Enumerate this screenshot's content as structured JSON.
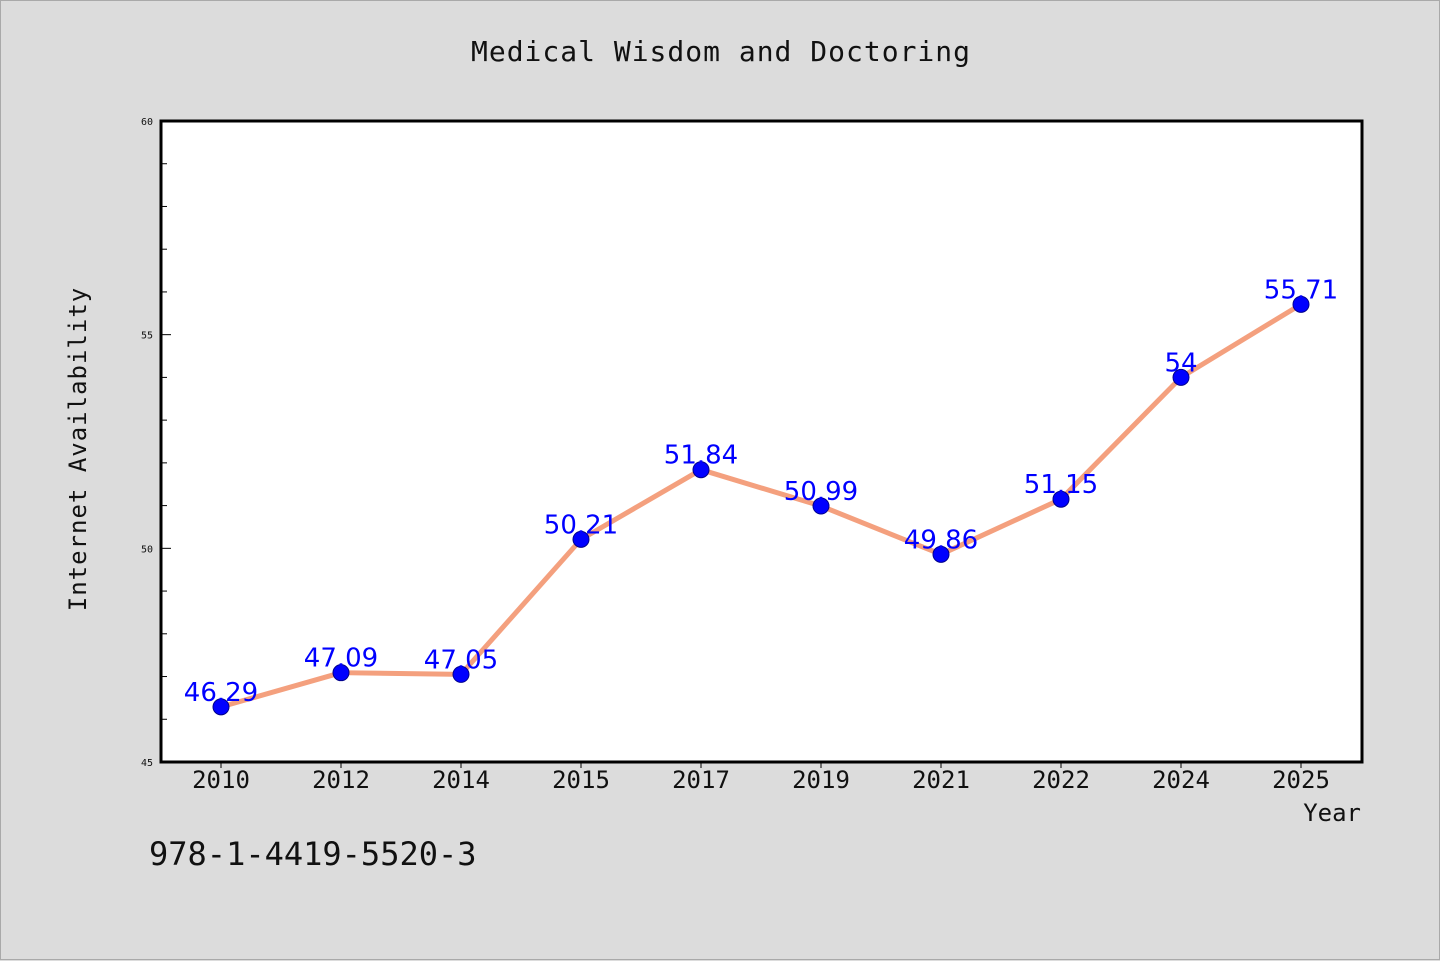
{
  "chart_data": {
    "type": "line",
    "title": "Medical Wisdom and Doctoring",
    "xlabel": "Year",
    "ylabel": "Internet Availability",
    "categories": [
      "2010",
      "2012",
      "2014",
      "2015",
      "2017",
      "2019",
      "2021",
      "2022",
      "2024",
      "2025"
    ],
    "values": [
      46.29,
      47.09,
      47.05,
      50.21,
      51.84,
      50.99,
      49.86,
      51.15,
      54,
      55.71
    ],
    "data_labels": [
      "46.29",
      "47.09",
      "47.05",
      "50.21",
      "51.84",
      "50.99",
      "49.86",
      "51.15",
      "54",
      "55.71"
    ],
    "ylim": [
      45,
      60
    ],
    "yticks": [
      "45",
      "50",
      "55",
      "60"
    ],
    "grid": false,
    "line_color": "#f4a07e",
    "marker_color": "#0000ff",
    "label_color": "#0000ff",
    "background_color": "#dcdcdc",
    "plot_background": "#ffffff"
  },
  "footer": {
    "code": "978-1-4419-5520-3"
  }
}
